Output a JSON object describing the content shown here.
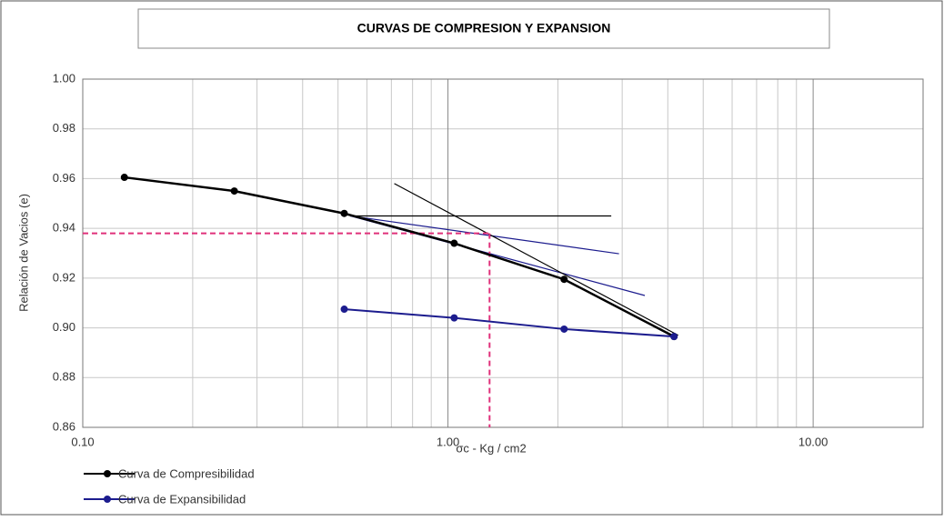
{
  "chart_data": {
    "type": "line",
    "title": "CURVAS DE COMPRESION Y EXPANSION",
    "x_label": "σc - Kg / cm2",
    "y_label": "Relación de Vacios (e)",
    "log_x": true,
    "grid": true,
    "legend": "bottom-left",
    "xlim": [
      0.1,
      20
    ],
    "ylim": [
      0.86,
      1.0
    ],
    "xticks": [
      {
        "value": 0.1,
        "label": "0.10"
      },
      {
        "value": 1,
        "label": "1.00"
      },
      {
        "value": 10,
        "label": "10.00"
      }
    ],
    "xminor": [
      0.2,
      0.3,
      0.4,
      0.5,
      0.6,
      0.7,
      0.8,
      0.9,
      2,
      3,
      4,
      5,
      6,
      7,
      8,
      9
    ],
    "yticks": [
      0.86,
      0.88,
      {
        "value": 0.9,
        "label": "0.90"
      },
      0.92,
      0.94,
      0.96,
      0.98,
      {
        "value": 1.0,
        "label": "1.00"
      }
    ],
    "series": [
      {
        "name": "Curva de Compresibilidad",
        "color": "#000000",
        "x": [
          0.13,
          0.26,
          0.52,
          1.04,
          2.08,
          4.16
        ],
        "values": [
          0.9605,
          0.955,
          0.946,
          0.934,
          0.9195,
          0.8965
        ]
      },
      {
        "name": "Curva de Expansibilidad",
        "color": "#1c1c8e",
        "x": [
          0.52,
          1.04,
          2.08,
          4.16
        ],
        "values": [
          0.9075,
          0.904,
          0.8995,
          0.8965
        ]
      }
    ],
    "construction_lines": [
      {
        "x": [
          0.54,
          2.8
        ],
        "y": [
          0.945,
          0.945
        ],
        "color": "#000000",
        "dashed": false
      },
      {
        "x": [
          0.54,
          2.94
        ],
        "y": [
          0.945,
          0.9298
        ],
        "color": "#1c1c8e",
        "dashed": false
      },
      {
        "x": [
          0.54,
          3.46
        ],
        "y": [
          0.945,
          0.913
        ],
        "color": "#1c1c8e",
        "dashed": false
      },
      {
        "x": [
          0.713,
          4.27
        ],
        "y": [
          0.958,
          0.897
        ],
        "color": "#000000",
        "dashed": false
      },
      {
        "x": [
          0.1,
          1.3
        ],
        "y": [
          0.938,
          0.938
        ],
        "color": "#e0307a",
        "dashed": true
      },
      {
        "x": [
          1.3,
          1.3
        ],
        "y": [
          0.938,
          0.86
        ],
        "color": "#e0307a",
        "dashed": true
      }
    ]
  }
}
